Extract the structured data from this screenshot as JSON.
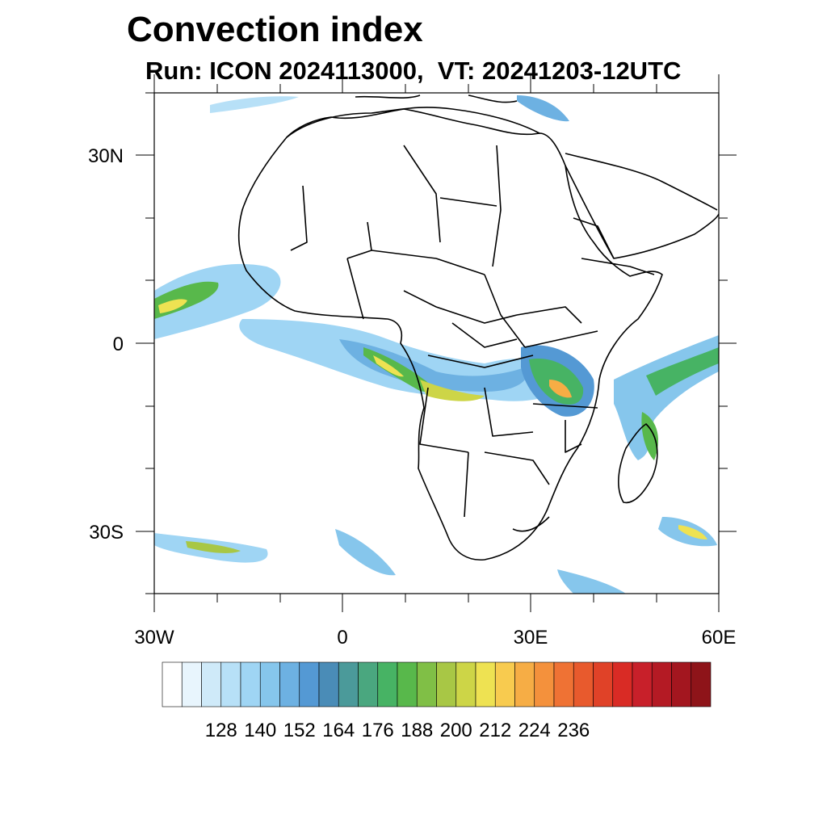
{
  "title": "Convection index",
  "subtitle": "Run: ICON 2024113000,  VT: 20241203-12UTC",
  "axes": {
    "lon_ticks": [
      "30W",
      "0",
      "30E",
      "60E"
    ],
    "lat_ticks": [
      "30N",
      "0",
      "30S"
    ]
  },
  "colorbar": {
    "labels": [
      "128",
      "140",
      "152",
      "164",
      "176",
      "188",
      "200",
      "212",
      "224",
      "236"
    ],
    "colors": [
      "#ffffff",
      "#e8f5fd",
      "#cfeaf9",
      "#b7e0f7",
      "#9fd5f4",
      "#86c6ec",
      "#6db1e2",
      "#5499d4",
      "#4a8cb7",
      "#4b9a9a",
      "#4aa77f",
      "#47b364",
      "#58b84b",
      "#80bf46",
      "#a8c745",
      "#cdd547",
      "#eee252",
      "#f8cb4f",
      "#f6ad45",
      "#f4913c",
      "#ef7234",
      "#e85a2d",
      "#e04228",
      "#d92b25",
      "#c8202a",
      "#b41a24",
      "#a3161f",
      "#8e1419"
    ]
  }
}
